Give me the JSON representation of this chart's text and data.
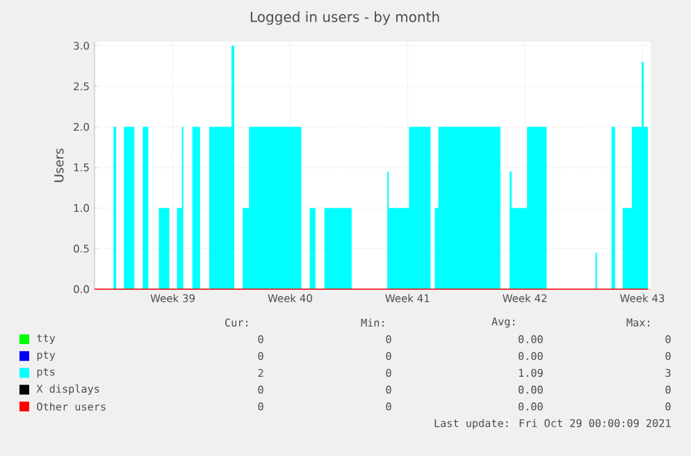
{
  "chart_data": {
    "type": "area",
    "title": "Logged in users - by month",
    "ylabel": "Users",
    "xlim": [
      "2021-09-25T20:00",
      "2021-10-29T00:00"
    ],
    "xticks": [
      {
        "value": "2021-09-30T12:00",
        "label": "Week 39"
      },
      {
        "value": "2021-10-07T12:00",
        "label": "Week 40"
      },
      {
        "value": "2021-10-14T12:00",
        "label": "Week 41"
      },
      {
        "value": "2021-10-21T12:00",
        "label": "Week 42"
      },
      {
        "value": "2021-10-28T12:00",
        "label": "Week 43"
      }
    ],
    "ylim": [
      0,
      3.05
    ],
    "yticks": [
      {
        "value": 0,
        "label": "0.0"
      },
      {
        "value": 0.5,
        "label": "0.5"
      },
      {
        "value": 1,
        "label": "1.0"
      },
      {
        "value": 1.5,
        "label": "1.5"
      },
      {
        "value": 2,
        "label": "2.0"
      },
      {
        "value": 2.5,
        "label": "2.5"
      },
      {
        "value": 3,
        "label": "3.0"
      }
    ],
    "grid": true,
    "legend": "bottom",
    "series": [
      {
        "name": "tty",
        "color": "#00ff00"
      },
      {
        "name": "pty",
        "color": "#0000ff"
      },
      {
        "name": "pts",
        "color": "#00ffff",
        "x": [
          "2021-09-25T20:00",
          "2021-09-26T23:00",
          "2021-09-26T23:00",
          "2021-09-27T03:00",
          "2021-09-27T03:00",
          "2021-09-27T14:00",
          "2021-09-27T14:00",
          "2021-09-28T05:00",
          "2021-09-28T05:00",
          "2021-09-28T17:00",
          "2021-09-28T17:00",
          "2021-09-29T01:00",
          "2021-09-29T01:00",
          "2021-09-29T16:00",
          "2021-09-29T16:00",
          "2021-09-30T07:00",
          "2021-09-30T07:00",
          "2021-09-30T18:00",
          "2021-09-30T18:00",
          "2021-10-01T01:00",
          "2021-10-01T01:00",
          "2021-10-01T03:00",
          "2021-10-01T03:00",
          "2021-10-01T16:00",
          "2021-10-01T16:00",
          "2021-10-02T03:00",
          "2021-10-02T03:00",
          "2021-10-02T16:00",
          "2021-10-02T16:00",
          "2021-10-04T00:00",
          "2021-10-04T00:00",
          "2021-10-04T04:00",
          "2021-10-04T04:00",
          "2021-10-04T16:00",
          "2021-10-04T16:00",
          "2021-10-05T01:00",
          "2021-10-05T01:00",
          "2021-10-08T04:00",
          "2021-10-08T04:00",
          "2021-10-08T16:00",
          "2021-10-08T16:00",
          "2021-10-09T00:00",
          "2021-10-09T00:00",
          "2021-10-09T13:00",
          "2021-10-09T13:00",
          "2021-10-11T04:00",
          "2021-10-11T04:00",
          "2021-10-13T07:00",
          "2021-10-13T07:00",
          "2021-10-13T09:00",
          "2021-10-13T09:00",
          "2021-10-14T14:00",
          "2021-10-14T14:00",
          "2021-10-15T21:00",
          "2021-10-15T21:00",
          "2021-10-16T03:00",
          "2021-10-16T03:00",
          "2021-10-16T08:00",
          "2021-10-16T08:00",
          "2021-10-20T01:00",
          "2021-10-20T01:00",
          "2021-10-20T14:00",
          "2021-10-20T14:00",
          "2021-10-20T17:00",
          "2021-10-20T17:00",
          "2021-10-21T15:00",
          "2021-10-21T15:00",
          "2021-10-22T19:00",
          "2021-10-22T19:00",
          "2021-10-25T17:00",
          "2021-10-25T17:00",
          "2021-10-25T19:00",
          "2021-10-25T19:00",
          "2021-10-26T16:00",
          "2021-10-26T16:00",
          "2021-10-26T21:00",
          "2021-10-26T21:00",
          "2021-10-27T08:00",
          "2021-10-27T08:00",
          "2021-10-27T21:00",
          "2021-10-27T21:00",
          "2021-10-28T11:00",
          "2021-10-28T11:00",
          "2021-10-28T14:00",
          "2021-10-28T14:00",
          "2021-10-28T20:00"
        ],
        "values": [
          0,
          0,
          2,
          2,
          0,
          0,
          2,
          2,
          0,
          0,
          2,
          2,
          0,
          0,
          1,
          1,
          0,
          0,
          1,
          1,
          2,
          2,
          0,
          0,
          2,
          2,
          0,
          0,
          2,
          2,
          3,
          3,
          0,
          0,
          1,
          1,
          2,
          2,
          0,
          0,
          1,
          1,
          0,
          0,
          1,
          1,
          0,
          0,
          1.45,
          1.45,
          1,
          1,
          2,
          2,
          0,
          0,
          1,
          1,
          2,
          2,
          0,
          0,
          1.45,
          1.45,
          1,
          1,
          2,
          2,
          0,
          0,
          0.45,
          0.45,
          0,
          0,
          2,
          2,
          0,
          0,
          1,
          1,
          2,
          2,
          2.8,
          2.8,
          2,
          2
        ]
      },
      {
        "name": "X displays",
        "color": "#000000"
      },
      {
        "name": "Other users",
        "color": "#ff0000",
        "type": "line",
        "x": [
          "2021-09-25T20:00",
          "2021-10-28T20:00"
        ],
        "values": [
          0,
          0
        ]
      }
    ],
    "annotations": [
      "Cur:",
      "Min:",
      "Avg:",
      "Max:",
      "0",
      "0",
      "0.00",
      "0",
      "0",
      "0",
      "0.00",
      "0",
      "2",
      "0",
      "1.09",
      "3",
      "0",
      "0",
      "0.00",
      "0",
      "0",
      "0",
      "0.00",
      "0",
      "Last update: Fri Oct 29 00:00:09 2021"
    ]
  }
}
